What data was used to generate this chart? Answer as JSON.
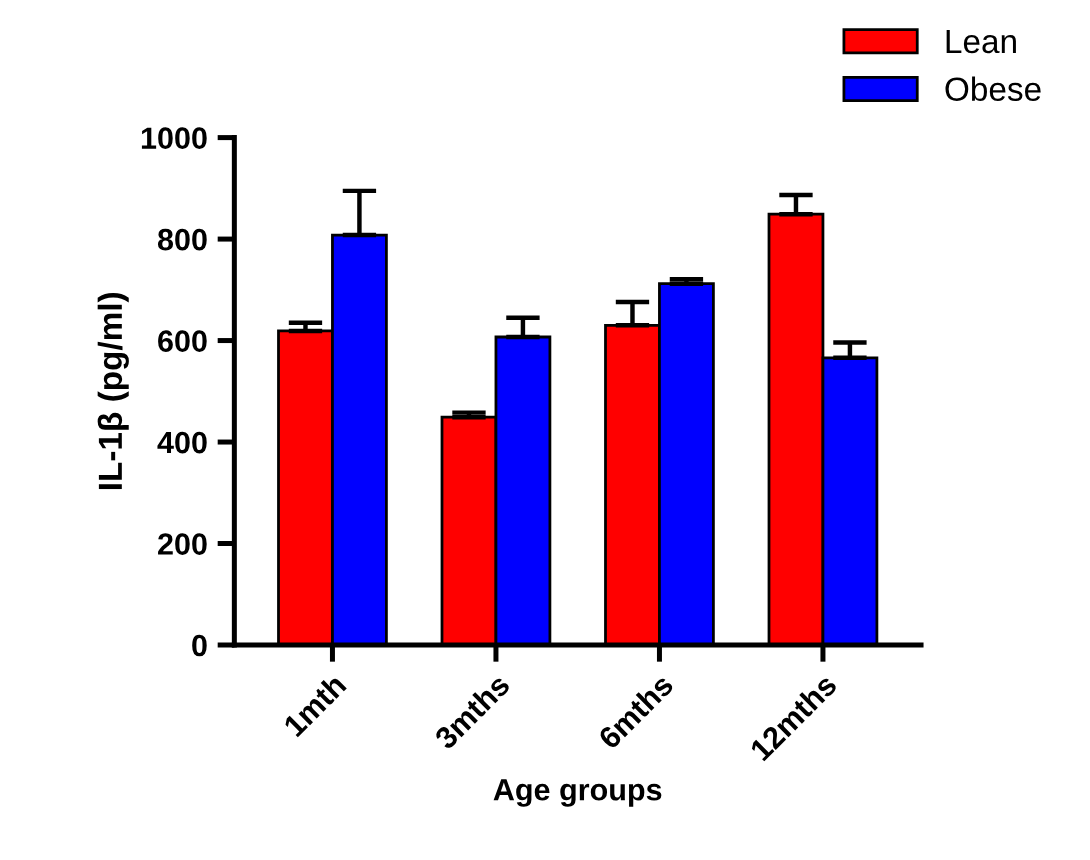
{
  "chart_data": {
    "type": "bar",
    "xlabel": "Age groups",
    "ylabel": "IL-1β (pg/ml)",
    "categories": [
      "1mth",
      "3mths",
      "6mths",
      "12mths"
    ],
    "series": [
      {
        "name": "Lean",
        "color": "#ff0000",
        "values": [
          619,
          449,
          630,
          849
        ],
        "errors": [
          [
            619,
            635
          ],
          [
            449,
            458
          ],
          [
            630,
            676
          ],
          [
            849,
            887
          ]
        ]
      },
      {
        "name": "Obese",
        "color": "#0000ff",
        "values": [
          808,
          607,
          712,
          566
        ],
        "errors": [
          [
            808,
            895
          ],
          [
            607,
            645
          ],
          [
            712,
            721
          ],
          [
            566,
            596
          ]
        ]
      }
    ],
    "ylim": [
      0,
      1000
    ],
    "yticks": [
      0,
      200,
      400,
      600,
      800,
      1000
    ],
    "grid": false,
    "legend": "top right"
  }
}
